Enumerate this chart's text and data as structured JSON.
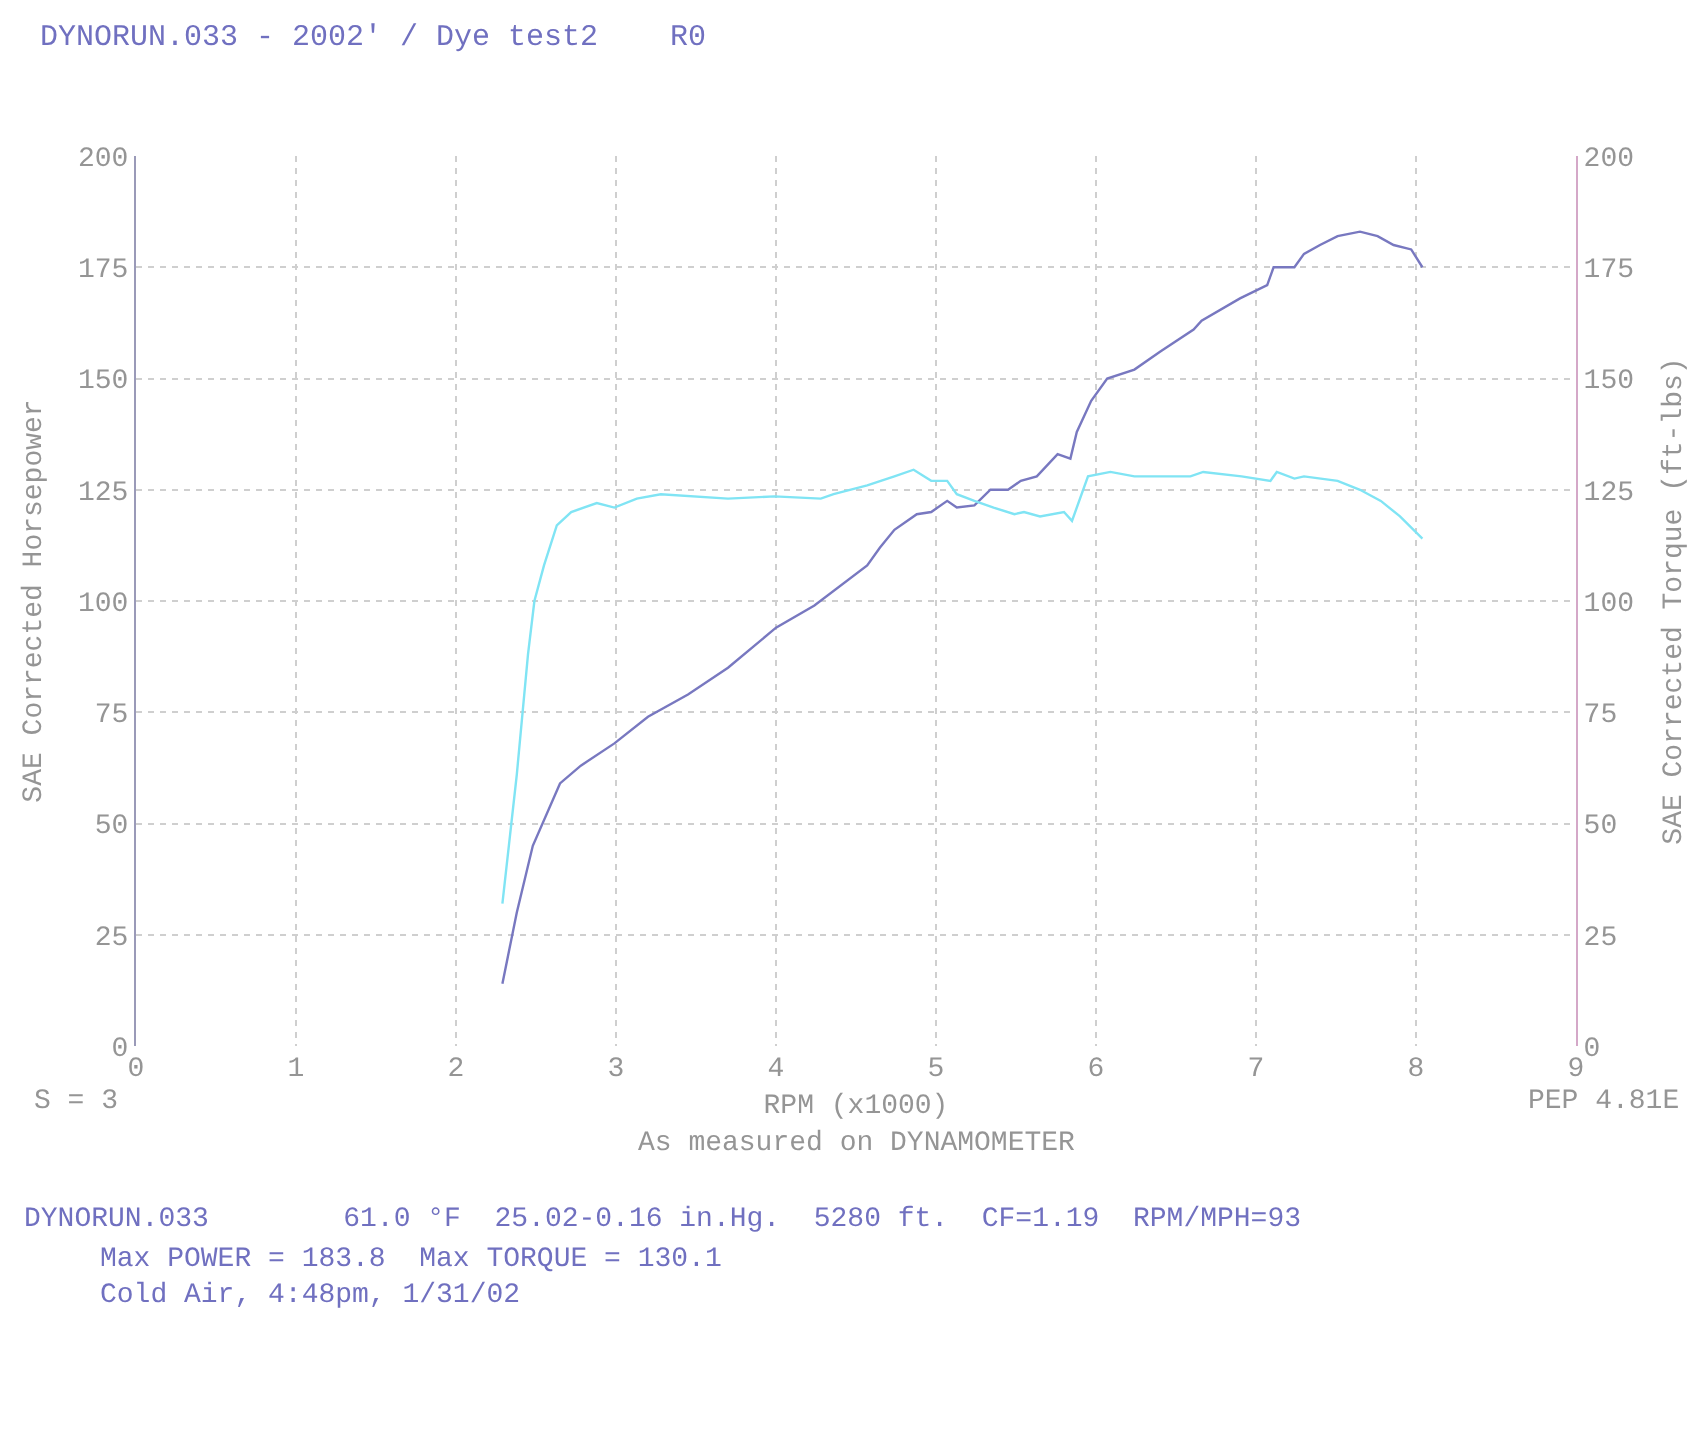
{
  "chart_data": {
    "type": "line",
    "title": "DYNORUN.033 - 2002' / Dye test2    R0",
    "xlabel": "RPM (x1000)",
    "ylabel": "SAE Corrected Horsepower",
    "y2label": "SAE Corrected Torque (ft-lbs)",
    "annotations": [
      "S = 3",
      "PEP 4.81E",
      "As measured on DYNAMOMETER",
      "DYNORUN.033        61.0 °F  25.02-0.16 in.Hg.  5280 ft.  CF=1.19  RPM/MPH=93",
      "Max POWER = 183.8  Max TORQUE = 130.1",
      "Cold Air, 4:48pm, 1/31/02"
    ],
    "xlim": [
      0,
      9
    ],
    "xticks": [
      0,
      1,
      2,
      3,
      4,
      5,
      6,
      7,
      8,
      9
    ],
    "ylim": [
      0,
      200
    ],
    "yticks": [
      0,
      25,
      50,
      75,
      100,
      125,
      150,
      175,
      200
    ],
    "y2lim": [
      0,
      200
    ],
    "y2ticks": [
      0,
      25,
      50,
      75,
      100,
      125,
      150,
      175,
      200
    ],
    "grid": true,
    "series": [
      {
        "color": "#7878c0",
        "x": [
          2.29,
          2.38,
          2.48,
          2.65,
          2.78,
          2.99,
          3.2,
          3.45,
          3.7,
          4.0,
          4.24,
          4.57,
          4.65,
          4.74,
          4.88,
          4.97,
          5.07,
          5.13,
          5.24,
          5.34,
          5.45,
          5.53,
          5.63,
          5.76,
          5.84,
          5.88,
          5.97,
          6.07,
          6.24,
          6.4,
          6.61,
          6.66,
          6.9,
          7.07,
          7.11,
          7.24,
          7.3,
          7.4,
          7.51,
          7.65,
          7.76,
          7.86,
          7.97,
          8.04
        ],
        "values": [
          14,
          30,
          45,
          59,
          63,
          68,
          74,
          79,
          85,
          94,
          99,
          108,
          112,
          116,
          119.5,
          120,
          122.5,
          121,
          121.5,
          125,
          125,
          127,
          128,
          133,
          132,
          138,
          145,
          150,
          152,
          156,
          161,
          163,
          168,
          171,
          175,
          175,
          178,
          180,
          182,
          183,
          182,
          180,
          179,
          175
        ]
      },
      {
        "color": "#80e4f4",
        "axis": "y2",
        "x": [
          2.29,
          2.38,
          2.45,
          2.49,
          2.55,
          2.63,
          2.72,
          2.88,
          2.99,
          3.13,
          3.28,
          3.7,
          3.99,
          4.28,
          4.36,
          4.57,
          4.74,
          4.86,
          4.97,
          5.07,
          5.13,
          5.24,
          5.36,
          5.49,
          5.55,
          5.65,
          5.8,
          5.85,
          5.95,
          6.09,
          6.24,
          6.49,
          6.59,
          6.67,
          6.91,
          7.09,
          7.13,
          7.24,
          7.3,
          7.51,
          7.65,
          7.78,
          7.9,
          8.04
        ],
        "values": [
          32,
          61,
          88,
          100,
          108,
          117,
          120,
          122,
          121,
          123,
          124,
          123,
          123.5,
          123,
          124,
          126,
          128,
          129.5,
          127,
          127,
          124,
          122.5,
          121,
          119.5,
          120,
          119,
          120,
          118,
          128,
          129,
          128,
          128,
          128,
          129,
          128,
          127,
          129,
          127.5,
          128,
          127,
          125,
          122.5,
          119,
          114
        ]
      }
    ]
  }
}
